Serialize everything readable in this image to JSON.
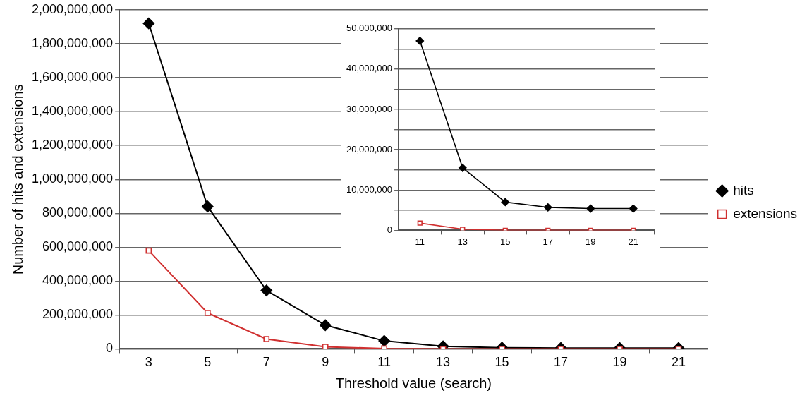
{
  "chart_data": [
    {
      "type": "line",
      "xlabel": "Threshold value (search)",
      "ylabel": "Number of hits and extensions",
      "categories": [
        "3",
        "5",
        "7",
        "9",
        "11",
        "13",
        "15",
        "17",
        "19",
        "21"
      ],
      "series": [
        {
          "name": "hits",
          "color": "#000000",
          "marker": "diamond",
          "values": [
            1920000000,
            840000000,
            345000000,
            140000000,
            47000000,
            15000000,
            7000000,
            5000000,
            5000000,
            5000000
          ]
        },
        {
          "name": "extensions",
          "color": "#d03030",
          "marker": "square",
          "values": [
            580000000,
            212000000,
            58000000,
            12000000,
            2000000,
            0,
            0,
            0,
            0,
            0
          ]
        }
      ],
      "ylim": [
        0,
        2000000000
      ],
      "yticks": [
        {
          "value": 0,
          "label": "0"
        },
        {
          "value": 200000000,
          "label": "200,000,000"
        },
        {
          "value": 400000000,
          "label": "400,000,000"
        },
        {
          "value": 600000000,
          "label": "600,000,000"
        },
        {
          "value": 800000000,
          "label": "800,000,000"
        },
        {
          "value": 1000000000,
          "label": "1,000,000,000"
        },
        {
          "value": 1200000000,
          "label": "1,200,000,000"
        },
        {
          "value": 1400000000,
          "label": "1,400,000,000"
        },
        {
          "value": 1600000000,
          "label": "1,600,000,000"
        },
        {
          "value": 1800000000,
          "label": "1,800,000,000"
        },
        {
          "value": 2000000000,
          "label": "2,000,000,000"
        }
      ],
      "grid": "y",
      "legend": "right"
    },
    {
      "type": "line",
      "categories": [
        "11",
        "13",
        "15",
        "17",
        "19",
        "21"
      ],
      "series": [
        {
          "color": "#000000",
          "marker": "diamond",
          "values": [
            47000000,
            15500000,
            7000000,
            5700000,
            5400000,
            5400000
          ]
        },
        {
          "color": "#d03030",
          "marker": "square",
          "values": [
            1800000,
            300000,
            0,
            0,
            0,
            0
          ]
        }
      ],
      "ylim": [
        0,
        50000000
      ],
      "yticks": [
        {
          "value": 0,
          "label": "0"
        },
        {
          "value": 5000000,
          "label": null
        },
        {
          "value": 10000000,
          "label": "10,000,000"
        },
        {
          "value": 15000000,
          "label": null
        },
        {
          "value": 20000000,
          "label": "20,000,000"
        },
        {
          "value": 25000000,
          "label": null
        },
        {
          "value": 30000000,
          "label": "30,000,000"
        },
        {
          "value": 35000000,
          "label": null
        },
        {
          "value": 40000000,
          "label": "40,000,000"
        },
        {
          "value": 45000000,
          "label": null
        },
        {
          "value": 50000000,
          "label": "50,000,000"
        }
      ],
      "grid": "y",
      "legend": false
    }
  ]
}
